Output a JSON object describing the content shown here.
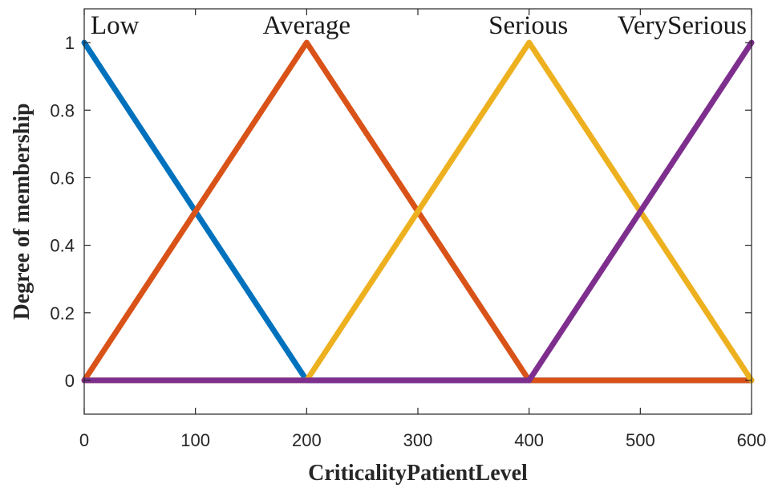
{
  "chart_data": {
    "type": "line",
    "title": "",
    "xlabel": "CriticalityPatientLevel",
    "ylabel": "Degree of membership",
    "xlim": [
      0,
      600
    ],
    "ylim": [
      -0.1,
      1.1
    ],
    "x_ticks": [
      0,
      100,
      200,
      300,
      400,
      500,
      600
    ],
    "x_tick_labels": [
      "0",
      "100",
      "200",
      "300",
      "400",
      "500",
      "600"
    ],
    "y_ticks": [
      0,
      0.2,
      0.4,
      0.6,
      0.8,
      1
    ],
    "y_tick_labels": [
      "0",
      "0.2",
      "0.4",
      "0.6",
      "0.8",
      "1"
    ],
    "grid": false,
    "series": [
      {
        "name": "Low",
        "color": "#0072BD",
        "x": [
          0,
          200,
          600
        ],
        "y": [
          1,
          0,
          0
        ]
      },
      {
        "name": "Average",
        "color": "#D95319",
        "x": [
          0,
          200,
          400,
          600
        ],
        "y": [
          0,
          1,
          0,
          0
        ]
      },
      {
        "name": "Serious",
        "color": "#EDB120",
        "x": [
          0,
          200,
          400,
          600
        ],
        "y": [
          0,
          0,
          1,
          0
        ]
      },
      {
        "name": "VerySerious",
        "color": "#7E2F8E",
        "x": [
          0,
          400,
          600
        ],
        "y": [
          0,
          0,
          1
        ]
      }
    ],
    "annotations": [
      {
        "text": "Low",
        "x": 0,
        "y": 1.0
      },
      {
        "text": "Average",
        "x": 200,
        "y": 1.0
      },
      {
        "text": "Serious",
        "x": 400,
        "y": 1.0
      },
      {
        "text": "VerySerious",
        "x": 600,
        "y": 1.0
      }
    ]
  }
}
